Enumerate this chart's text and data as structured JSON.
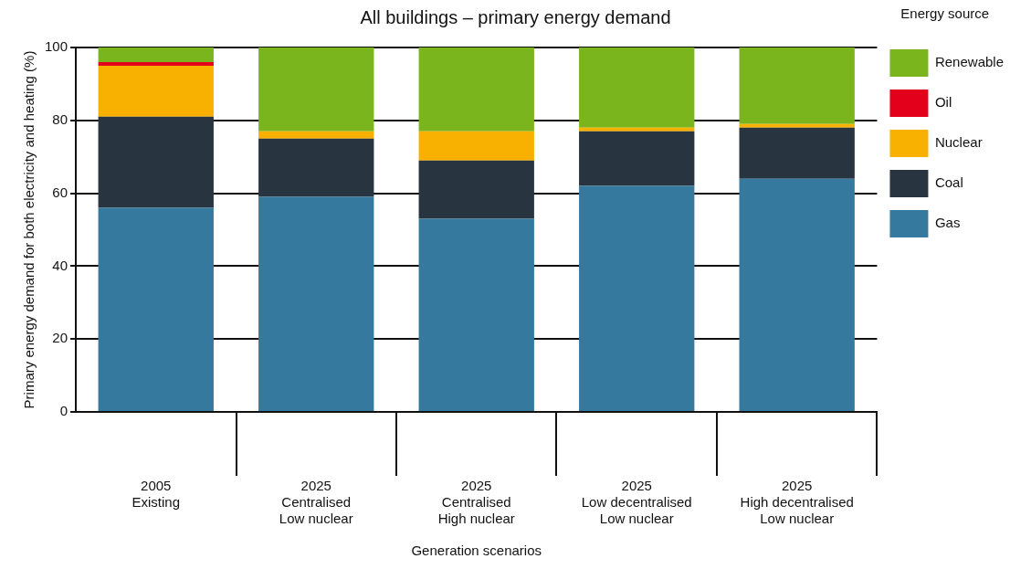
{
  "chart_data": {
    "type": "bar",
    "title": "All buildings – primary energy demand",
    "xlabel": "Generation scenarios",
    "ylabel": "Primary energy demand for both electricity and heating (%)",
    "legend_title": "Energy source",
    "categories": [
      "2005\nExisting",
      "2025\nCentralised\nLow nuclear",
      "2025\nCentralised\nHigh nuclear",
      "2025\nLow decentralised\nLow nuclear",
      "2025\nHigh decentralised\nLow nuclear"
    ],
    "stacked": true,
    "ylim": [
      0,
      100
    ],
    "yticks": [
      0,
      20,
      40,
      60,
      80,
      100
    ],
    "grid": "y",
    "legend": "right",
    "series": [
      {
        "name": "Gas",
        "color": "#35799e",
        "values": [
          56,
          59,
          53,
          62,
          64
        ]
      },
      {
        "name": "Coal",
        "color": "#283540",
        "values": [
          25,
          16,
          16,
          15,
          14
        ]
      },
      {
        "name": "Nuclear",
        "color": "#f8b100",
        "values": [
          14,
          2,
          8,
          1,
          1
        ]
      },
      {
        "name": "Oil",
        "color": "#e2001a",
        "values": [
          1,
          0,
          0,
          0,
          0
        ]
      },
      {
        "name": "Renewable",
        "color": "#7ab51d",
        "values": [
          4,
          23,
          23,
          22,
          21
        ]
      }
    ]
  }
}
